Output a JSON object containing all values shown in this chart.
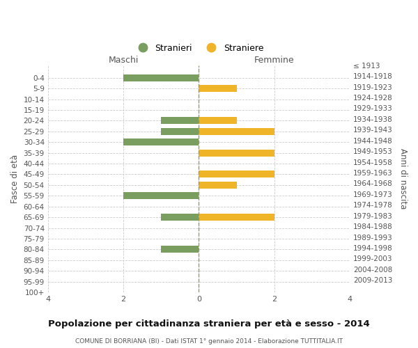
{
  "age_groups": [
    "0-4",
    "5-9",
    "10-14",
    "15-19",
    "20-24",
    "25-29",
    "30-34",
    "35-39",
    "40-44",
    "45-49",
    "50-54",
    "55-59",
    "60-64",
    "65-69",
    "70-74",
    "75-79",
    "80-84",
    "85-89",
    "90-94",
    "95-99",
    "100+"
  ],
  "birth_years": [
    "2009-2013",
    "2004-2008",
    "1999-2003",
    "1994-1998",
    "1989-1993",
    "1984-1988",
    "1979-1983",
    "1974-1978",
    "1969-1973",
    "1964-1968",
    "1959-1963",
    "1954-1958",
    "1949-1953",
    "1944-1948",
    "1939-1943",
    "1934-1938",
    "1929-1933",
    "1924-1928",
    "1919-1923",
    "1914-1918",
    "≤ 1913"
  ],
  "maschi": [
    2,
    0,
    0,
    0,
    1,
    1,
    2,
    0,
    0,
    0,
    0,
    2,
    0,
    1,
    0,
    0,
    1,
    0,
    0,
    0,
    0
  ],
  "femmine": [
    0,
    1,
    0,
    0,
    1,
    2,
    0,
    2,
    0,
    2,
    1,
    0,
    0,
    2,
    0,
    0,
    0,
    0,
    0,
    0,
    0
  ],
  "color_maschi": "#7a9e5f",
  "color_femmine": "#f0b429",
  "title": "Popolazione per cittadinanza straniera per età e sesso - 2014",
  "subtitle": "COMUNE DI BORRIANA (BI) - Dati ISTAT 1° gennaio 2014 - Elaborazione TUTTITALIA.IT",
  "xlabel_left": "Maschi",
  "xlabel_right": "Femmine",
  "ylabel_left": "Fasce di età",
  "ylabel_right": "Anni di nascita",
  "legend_maschi": "Stranieri",
  "legend_femmine": "Straniere",
  "xlim": 4,
  "background_color": "#ffffff",
  "grid_color": "#cccccc",
  "center_line_color": "#999966"
}
